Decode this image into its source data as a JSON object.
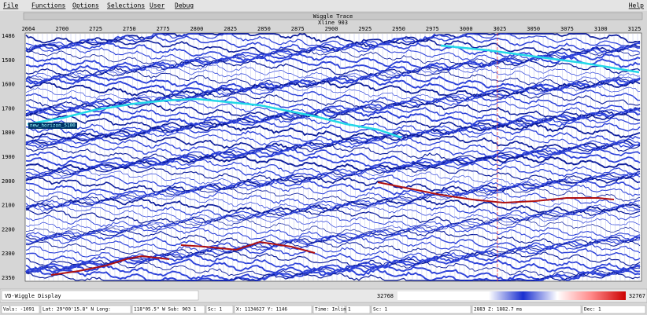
{
  "menu": [
    "File",
    "Functions",
    "Options",
    "Selections",
    "User",
    "Debug"
  ],
  "help": "Help",
  "window_title": "Wiggle Trace",
  "subtitle": "Xline 903",
  "top_axis": [
    "2664",
    "2700",
    "2725",
    "2750",
    "2775",
    "2800",
    "2825",
    "2850",
    "2875",
    "2900",
    "2925",
    "2950",
    "2975",
    "3000",
    "3025",
    "3050",
    "3075",
    "3100",
    "3125"
  ],
  "left_axis": [
    "1486",
    "1500",
    "1600",
    "1700",
    "1800",
    "1900",
    "2000",
    "2100",
    "2200",
    "2300",
    "2350"
  ],
  "horizon_label": "new_horizon_5100",
  "display_name": "VD-Wiggle Display",
  "color_min": "32768",
  "color_max": "32767",
  "status": [
    "Vals: -1091",
    "Lat: 29°00'15.8\" N Long:",
    "118°05.5\" W  Sub: 903 1",
    "Sc: 1",
    "X: 1134627 Y: 1146",
    "Time: Inline",
    "1",
    "Sc: 1",
    "2883  Z: 1882.7 ms",
    "Dec: 1"
  ]
}
